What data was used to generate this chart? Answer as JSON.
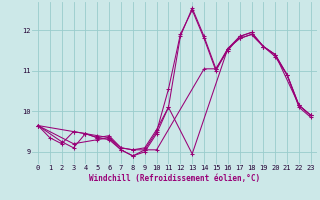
{
  "xlabel": "Windchill (Refroidissement éolien,°C)",
  "bg_color": "#cce8e8",
  "grid_color": "#99cccc",
  "line_color": "#990077",
  "xlim": [
    -0.5,
    23.5
  ],
  "ylim": [
    8.7,
    12.7
  ],
  "yticks": [
    9,
    10,
    11,
    12
  ],
  "xticks": [
    0,
    1,
    2,
    3,
    4,
    5,
    6,
    7,
    8,
    9,
    10,
    11,
    12,
    13,
    14,
    15,
    16,
    17,
    18,
    19,
    20,
    21,
    22,
    23
  ],
  "lines": [
    {
      "x": [
        0,
        1,
        2,
        3,
        4,
        5,
        6,
        7,
        8,
        9,
        10,
        11,
        12,
        13,
        14,
        15,
        16,
        17,
        18,
        19,
        20,
        21,
        22,
        23
      ],
      "y": [
        9.65,
        9.35,
        9.2,
        9.5,
        9.45,
        9.35,
        9.4,
        9.1,
        9.05,
        9.1,
        9.55,
        10.1,
        11.85,
        12.55,
        11.85,
        11.05,
        11.5,
        11.85,
        11.95,
        11.6,
        11.4,
        10.9,
        10.15,
        9.9
      ]
    },
    {
      "x": [
        0,
        2,
        3,
        4,
        5,
        6,
        7,
        8,
        9,
        10,
        11,
        12,
        13,
        14,
        15,
        16,
        17,
        18,
        19,
        20,
        22,
        23
      ],
      "y": [
        9.65,
        9.25,
        9.1,
        9.45,
        9.35,
        9.3,
        9.05,
        8.9,
        9.05,
        9.5,
        10.55,
        11.9,
        12.5,
        11.8,
        11.0,
        11.55,
        11.85,
        11.95,
        11.6,
        11.4,
        10.15,
        9.9
      ]
    },
    {
      "x": [
        0,
        3,
        4,
        5,
        6,
        7,
        8,
        9,
        10,
        14,
        15,
        16,
        17,
        18,
        19,
        20,
        21,
        22,
        23
      ],
      "y": [
        9.65,
        9.5,
        9.45,
        9.4,
        9.35,
        9.1,
        9.05,
        9.05,
        9.05,
        11.05,
        11.05,
        11.55,
        11.8,
        11.9,
        11.6,
        11.4,
        10.9,
        10.15,
        9.9
      ]
    },
    {
      "x": [
        0,
        3,
        5,
        6,
        7,
        8,
        9,
        10,
        11,
        13,
        16,
        17,
        18,
        19,
        20,
        21,
        22,
        23
      ],
      "y": [
        9.65,
        9.2,
        9.3,
        9.35,
        9.05,
        8.9,
        9.0,
        9.45,
        10.1,
        8.95,
        11.55,
        11.8,
        11.9,
        11.6,
        11.35,
        10.9,
        10.1,
        9.85
      ]
    }
  ]
}
